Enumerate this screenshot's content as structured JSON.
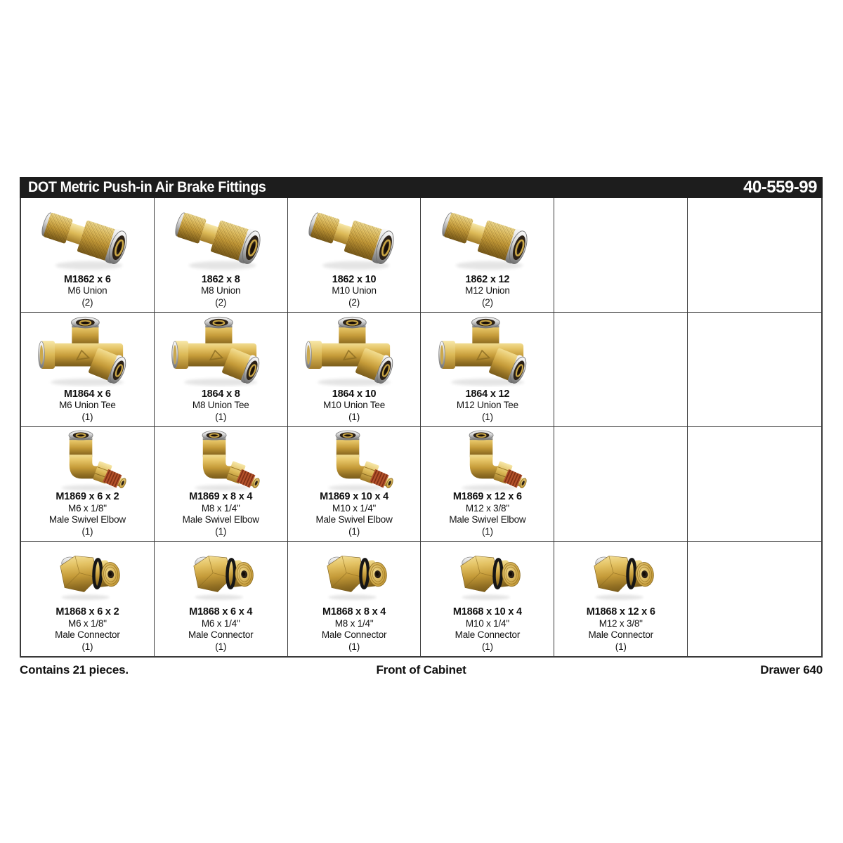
{
  "header": {
    "title": "DOT Metric Push-in Air Brake Fittings",
    "part_number": "40-559-99",
    "bg_color": "#1d1d1d",
    "text_color": "#ffffff"
  },
  "footer": {
    "left": "Contains 21 pieces.",
    "center": "Front of Cabinet",
    "right": "Drawer 640"
  },
  "colors": {
    "brass": "#c9a544",
    "silver": "#c8c8c8",
    "thread_sealant": "#b3512b",
    "grid_line": "#3a3a3a",
    "text": "#111111"
  },
  "grid": {
    "columns": 6,
    "rows": [
      {
        "cells": [
          {
            "type": "union",
            "part": "M1862 x 6",
            "desc": [
              "M6 Union"
            ],
            "qty": "(2)"
          },
          {
            "type": "union",
            "part": "1862 x 8",
            "desc": [
              "M8 Union"
            ],
            "qty": "(2)"
          },
          {
            "type": "union",
            "part": "1862 x 10",
            "desc": [
              "M10 Union"
            ],
            "qty": "(2)"
          },
          {
            "type": "union",
            "part": "1862 x 12",
            "desc": [
              "M12 Union"
            ],
            "qty": "(2)"
          },
          null,
          null
        ]
      },
      {
        "cells": [
          {
            "type": "union-tee",
            "part": "M1864 x 6",
            "desc": [
              "M6 Union Tee"
            ],
            "qty": "(1)"
          },
          {
            "type": "union-tee",
            "part": "1864 x 8",
            "desc": [
              "M8 Union Tee"
            ],
            "qty": "(1)"
          },
          {
            "type": "union-tee",
            "part": "1864 x 10",
            "desc": [
              "M10 Union Tee"
            ],
            "qty": "(1)"
          },
          {
            "type": "union-tee",
            "part": "1864 x 12",
            "desc": [
              "M12 Union Tee"
            ],
            "qty": "(1)"
          },
          null,
          null
        ]
      },
      {
        "cells": [
          {
            "type": "male-swivel-elbow",
            "part": "M1869 x 6 x 2",
            "desc": [
              "M6 x 1/8\"",
              "Male Swivel Elbow"
            ],
            "qty": "(1)"
          },
          {
            "type": "male-swivel-elbow",
            "part": "M1869 x 8 x 4",
            "desc": [
              "M8 x 1/4\"",
              "Male Swivel Elbow"
            ],
            "qty": "(1)"
          },
          {
            "type": "male-swivel-elbow",
            "part": "M1869 x 10 x 4",
            "desc": [
              "M10 x 1/4\"",
              "Male Swivel Elbow"
            ],
            "qty": "(1)"
          },
          {
            "type": "male-swivel-elbow",
            "part": "M1869 x 12 x 6",
            "desc": [
              "M12 x 3/8\"",
              "Male Swivel Elbow"
            ],
            "qty": "(1)"
          },
          null,
          null
        ]
      },
      {
        "cells": [
          {
            "type": "male-connector",
            "part": "M1868 x 6 x 2",
            "desc": [
              "M6 x 1/8\"",
              "Male Connector"
            ],
            "qty": "(1)"
          },
          {
            "type": "male-connector",
            "part": "M1868 x 6 x 4",
            "desc": [
              "M6 x 1/4\"",
              "Male Connector"
            ],
            "qty": "(1)"
          },
          {
            "type": "male-connector",
            "part": "M1868 x 8 x 4",
            "desc": [
              "M8 x 1/4\"",
              "Male Connector"
            ],
            "qty": "(1)"
          },
          {
            "type": "male-connector",
            "part": "M1868 x 10 x 4",
            "desc": [
              "M10 x 1/4\"",
              "Male Connector"
            ],
            "qty": "(1)"
          },
          {
            "type": "male-connector",
            "part": "M1868 x 12 x 6",
            "desc": [
              "M12 x 3/8\"",
              "Male Connector"
            ],
            "qty": "(1)"
          },
          null
        ]
      }
    ]
  }
}
